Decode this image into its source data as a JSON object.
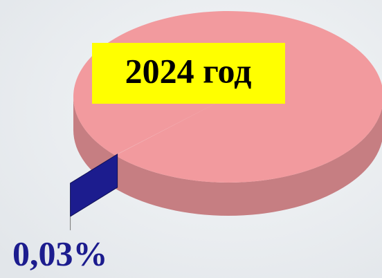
{
  "chart_data": {
    "type": "pie",
    "title": "2024 год",
    "categories": [
      null,
      null
    ],
    "series": [
      {
        "colors": [
          "#f29a9e",
          "#1c1c8e"
        ],
        "values": [
          99.97,
          0.03
        ],
        "value_labels": [
          null,
          "0,03%"
        ]
      }
    ],
    "title_background": "#ffff00"
  }
}
